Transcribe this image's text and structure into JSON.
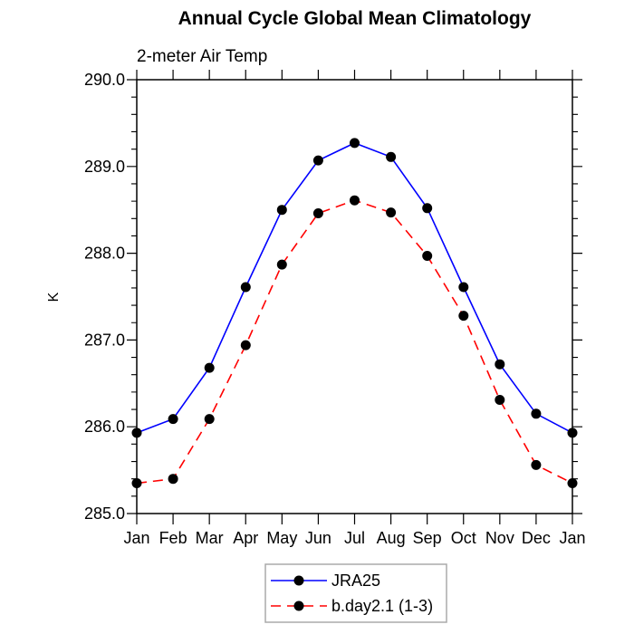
{
  "chart_data": {
    "type": "line",
    "title": "Annual Cycle Global Mean Climatology",
    "subtitle": "2-meter Air Temp",
    "ylabel": "K",
    "xlabel": "",
    "categories": [
      "Jan",
      "Feb",
      "Mar",
      "Apr",
      "May",
      "Jun",
      "Jul",
      "Aug",
      "Sep",
      "Oct",
      "Nov",
      "Dec",
      "Jan"
    ],
    "ylim": [
      285.0,
      290.0
    ],
    "ytick_values": [
      285.0,
      286.0,
      287.0,
      288.0,
      289.0,
      290.0
    ],
    "ytick_labels": [
      "285.0",
      "286.0",
      "287.0",
      "288.0",
      "289.0",
      "290.0"
    ],
    "yminor_step": 0.2,
    "grid": false,
    "axis_color": "#000000",
    "legend_position": "bottom-center",
    "legend_border_color": "#aaaaaa",
    "series": [
      {
        "name": "JRA25",
        "line_color": "#0000ff",
        "line_style": "solid",
        "marker": "filled-circle",
        "marker_color": "#000000",
        "values": [
          285.93,
          286.09,
          286.68,
          287.61,
          288.5,
          289.07,
          289.27,
          289.11,
          288.52,
          287.61,
          286.72,
          286.15,
          285.93
        ]
      },
      {
        "name": "b.day2.1 (1-3)",
        "line_color": "#ff0000",
        "line_style": "dashed",
        "marker": "filled-circle",
        "marker_color": "#000000",
        "values": [
          285.35,
          285.4,
          286.09,
          286.94,
          287.87,
          288.46,
          288.61,
          288.47,
          287.97,
          287.28,
          286.31,
          285.56,
          285.35
        ]
      }
    ]
  }
}
